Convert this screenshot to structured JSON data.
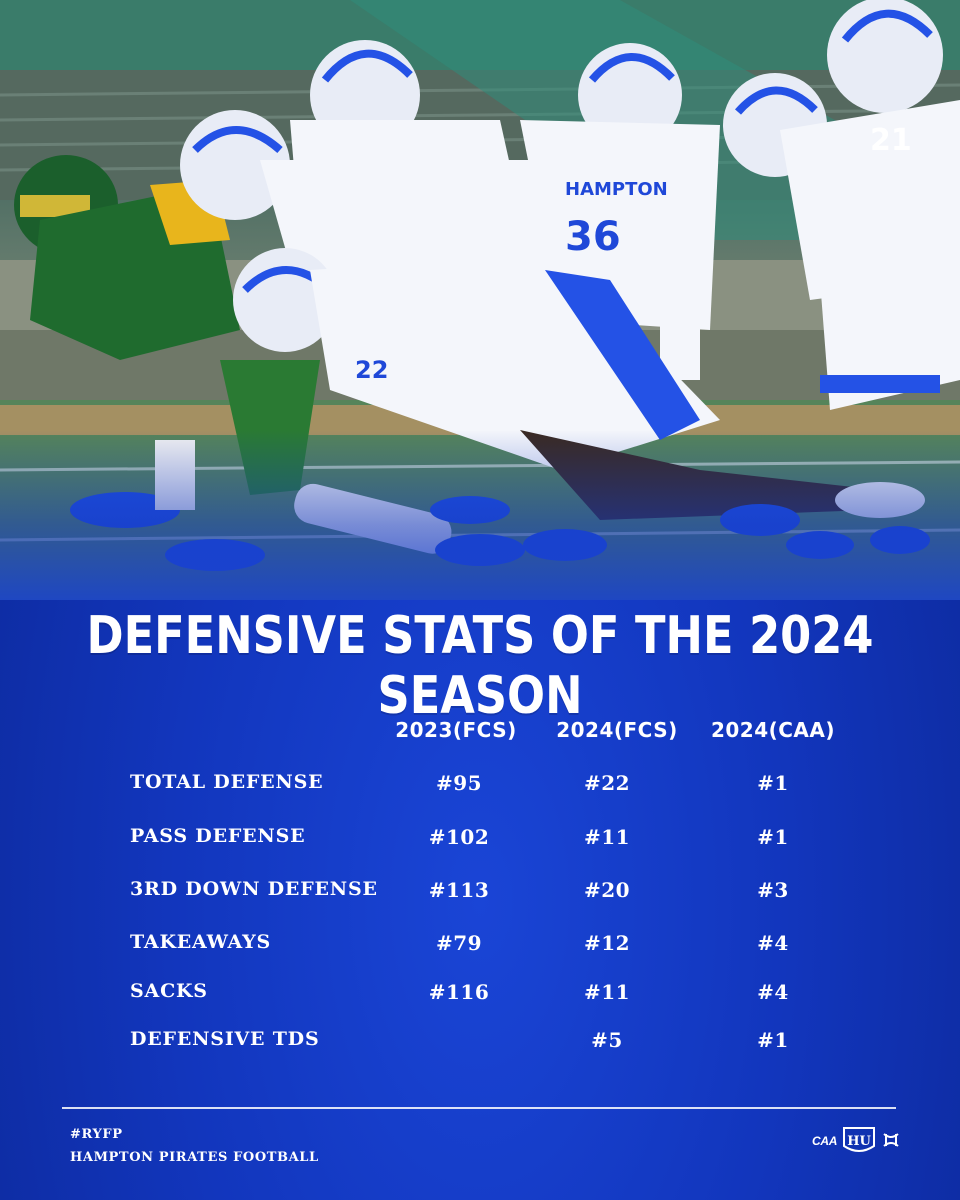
{
  "headline": "DEFENSIVE STATS OF THE 2024 SEASON",
  "columns": [
    "2023(FCS)",
    "2024(FCS)",
    "2024(CAA)"
  ],
  "rows": [
    {
      "label": "TOTAL DEFENSE",
      "values": [
        "#95",
        "#22",
        "#1"
      ]
    },
    {
      "label": "PASS DEFENSE",
      "values": [
        "#102",
        "#11",
        "#1"
      ]
    },
    {
      "label": "3RD DOWN DEFENSE",
      "values": [
        "#113",
        "#20",
        "#3"
      ]
    },
    {
      "label": "TAKEAWAYS",
      "values": [
        "#79",
        "#12",
        "#4"
      ]
    },
    {
      "label": "SACKS",
      "values": [
        "#116",
        "#11",
        "#4"
      ]
    },
    {
      "label": "DEFENSIVE TDS",
      "values": [
        "",
        "#5",
        "#1"
      ]
    }
  ],
  "photo": {
    "jersey_numbers": [
      "22",
      "36",
      "21"
    ],
    "jersey_lettering": "HAMPTON"
  },
  "footer": {
    "hashtag": "#RYFP",
    "team": "HAMPTON PIRATES FOOTBALL",
    "logos": {
      "conference": "CAA",
      "school": "HU",
      "apparel_icon": "under-armour-logo-icon"
    }
  },
  "colors": {
    "background_blue": "#1236bd",
    "text": "#ffffff",
    "jersey_blue": "#1f48d8",
    "opponent_green": "#1f6b2e",
    "opponent_gold": "#e8b51c"
  }
}
